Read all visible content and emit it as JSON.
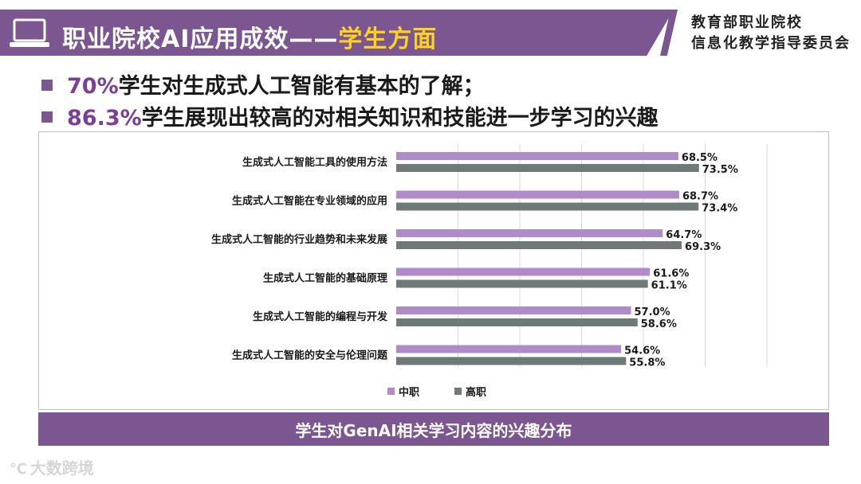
{
  "header": {
    "title_main": "职业院校AI应用成效——",
    "title_accent": "学生方面",
    "org_line1": "教育部职业院校",
    "org_line2": "信息化教学指导委员会"
  },
  "bullets": [
    {
      "pct": "70%",
      "text": "学生对生成式人工智能有基本的了解；"
    },
    {
      "pct": "86.3%",
      "text": "学生展现出较高的对相关知识和技能进一步学习的兴趣"
    }
  ],
  "caption": "学生对GenAI相关学习内容的兴趣分布",
  "watermark": "大数跨境",
  "colors": {
    "accent": "#7b5690",
    "series_zhongzhi": "#b18bc9",
    "series_gaozhi": "#6f7a78",
    "highlight": "#ffd21f"
  },
  "chart_data": {
    "type": "bar",
    "orientation": "horizontal",
    "categories": [
      "生成式人工智能工具的使用方法",
      "生成式人工智能在专业领域的应用",
      "生成式人工智能的行业趋势和未来发展",
      "生成式人工智能的基础原理",
      "生成式人工智能的编程与开发",
      "生成式人工智能的安全与伦理问题"
    ],
    "series": [
      {
        "name": "中职",
        "values": [
          68.5,
          68.7,
          64.7,
          61.6,
          57.0,
          54.6
        ],
        "labels": [
          "68.5%",
          "68.7%",
          "64.7%",
          "61.6%",
          "57.0%",
          "54.6%"
        ]
      },
      {
        "name": "高职",
        "values": [
          73.5,
          73.4,
          69.3,
          61.1,
          58.6,
          55.8
        ],
        "labels": [
          "73.5%",
          "73.4%",
          "69.3%",
          "61.1%",
          "58.6%",
          "55.8%"
        ]
      }
    ],
    "xlim": [
      0,
      90
    ],
    "grid": true,
    "legend_position": "bottom",
    "title": "",
    "xlabel": "",
    "ylabel": ""
  }
}
